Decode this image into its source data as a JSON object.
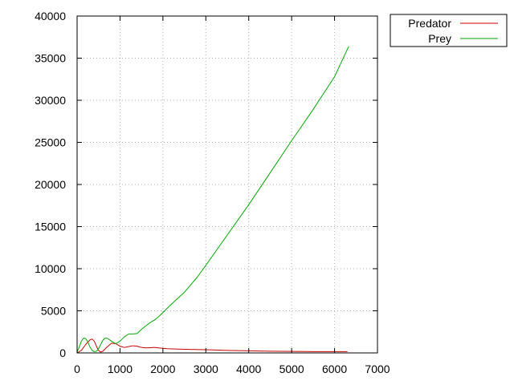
{
  "chart_data": {
    "type": "line",
    "xlim": [
      0,
      7000
    ],
    "ylim": [
      0,
      40000
    ],
    "x_ticks": [
      "0",
      "1000",
      "2000",
      "3000",
      "4000",
      "5000",
      "6000",
      "7000"
    ],
    "y_ticks": [
      "0",
      "5000",
      "10000",
      "15000",
      "20000",
      "25000",
      "30000",
      "35000",
      "40000"
    ],
    "grid": true,
    "legend_position": "outside-top-right",
    "series": [
      {
        "name": "Predator",
        "color": "#cc0000",
        "points": [
          [
            0,
            0
          ],
          [
            100,
            300
          ],
          [
            200,
            1000
          ],
          [
            300,
            1550
          ],
          [
            350,
            1650
          ],
          [
            400,
            1400
          ],
          [
            450,
            800
          ],
          [
            500,
            300
          ],
          [
            550,
            100
          ],
          [
            600,
            200
          ],
          [
            700,
            700
          ],
          [
            800,
            1150
          ],
          [
            900,
            1100
          ],
          [
            1000,
            800
          ],
          [
            1100,
            650
          ],
          [
            1200,
            750
          ],
          [
            1300,
            850
          ],
          [
            1400,
            800
          ],
          [
            1500,
            650
          ],
          [
            1600,
            600
          ],
          [
            1700,
            620
          ],
          [
            1800,
            650
          ],
          [
            1900,
            600
          ],
          [
            2000,
            550
          ],
          [
            2100,
            500
          ],
          [
            2500,
            430
          ],
          [
            3000,
            380
          ],
          [
            3500,
            300
          ],
          [
            4000,
            250
          ],
          [
            4500,
            200
          ],
          [
            5000,
            180
          ],
          [
            5500,
            160
          ],
          [
            6000,
            150
          ],
          [
            6300,
            150
          ]
        ]
      },
      {
        "name": "Prey",
        "color": "#00aa00",
        "points": [
          [
            0,
            100
          ],
          [
            50,
            700
          ],
          [
            100,
            1400
          ],
          [
            150,
            1750
          ],
          [
            200,
            1700
          ],
          [
            250,
            1300
          ],
          [
            300,
            700
          ],
          [
            350,
            300
          ],
          [
            400,
            150
          ],
          [
            450,
            200
          ],
          [
            500,
            500
          ],
          [
            550,
            1000
          ],
          [
            600,
            1500
          ],
          [
            650,
            1750
          ],
          [
            700,
            1750
          ],
          [
            800,
            1400
          ],
          [
            900,
            1100
          ],
          [
            1000,
            1400
          ],
          [
            1100,
            1900
          ],
          [
            1200,
            2250
          ],
          [
            1300,
            2250
          ],
          [
            1400,
            2300
          ],
          [
            1500,
            2800
          ],
          [
            1600,
            3200
          ],
          [
            1700,
            3600
          ],
          [
            1800,
            3900
          ],
          [
            1900,
            4300
          ],
          [
            2000,
            4800
          ],
          [
            2200,
            5800
          ],
          [
            2500,
            7200
          ],
          [
            2800,
            9000
          ],
          [
            3000,
            10400
          ],
          [
            3500,
            14000
          ],
          [
            4000,
            17600
          ],
          [
            4500,
            21400
          ],
          [
            5000,
            25200
          ],
          [
            5500,
            28900
          ],
          [
            6000,
            32800
          ],
          [
            6330,
            36400
          ]
        ]
      }
    ]
  }
}
